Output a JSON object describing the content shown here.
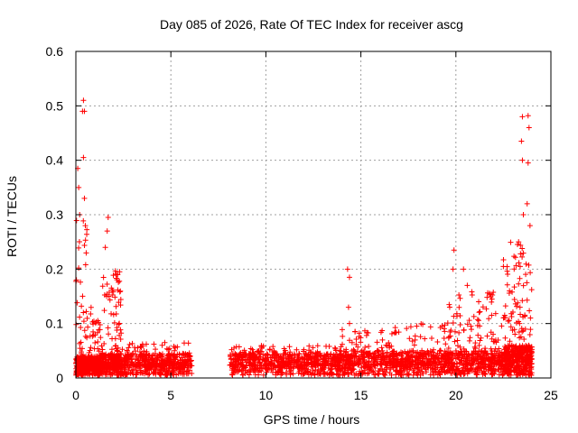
{
  "chart_data": {
    "type": "scatter",
    "title": "Day 085 of 2026, Rate Of TEC Index for receiver ascg",
    "xlabel": "GPS time / hours",
    "ylabel": "ROTI / TECUs",
    "xlim": [
      0,
      25
    ],
    "ylim": [
      0,
      0.6
    ],
    "x_ticks": [
      "0",
      "5",
      "10",
      "15",
      "20",
      "25"
    ],
    "y_ticks": [
      "0",
      "0.1",
      "0.2",
      "0.3",
      "0.4",
      "0.5",
      "0.6"
    ],
    "grid": true,
    "marker": "+",
    "color": "#ff0000",
    "data_gap_hours": [
      6.1,
      8.1
    ],
    "notable_points": [
      {
        "x": 0.4,
        "y": 0.51
      },
      {
        "x": 0.35,
        "y": 0.49
      },
      {
        "x": 0.45,
        "y": 0.49
      },
      {
        "x": 0.4,
        "y": 0.405
      },
      {
        "x": 0.1,
        "y": 0.385
      },
      {
        "x": 0.15,
        "y": 0.35
      },
      {
        "x": 0.45,
        "y": 0.33
      },
      {
        "x": 0.2,
        "y": 0.3
      },
      {
        "x": 0.5,
        "y": 0.28
      },
      {
        "x": 1.7,
        "y": 0.295
      },
      {
        "x": 1.65,
        "y": 0.27
      },
      {
        "x": 1.55,
        "y": 0.24
      },
      {
        "x": 2.2,
        "y": 0.19
      },
      {
        "x": 14.3,
        "y": 0.2
      },
      {
        "x": 14.4,
        "y": 0.185
      },
      {
        "x": 14.35,
        "y": 0.13
      },
      {
        "x": 14.4,
        "y": 0.1
      },
      {
        "x": 19.9,
        "y": 0.235
      },
      {
        "x": 19.85,
        "y": 0.2
      },
      {
        "x": 20.4,
        "y": 0.2
      },
      {
        "x": 20.6,
        "y": 0.17
      },
      {
        "x": 21.2,
        "y": 0.14
      },
      {
        "x": 22.5,
        "y": 0.205
      },
      {
        "x": 23.5,
        "y": 0.48
      },
      {
        "x": 23.8,
        "y": 0.482
      },
      {
        "x": 23.85,
        "y": 0.46
      },
      {
        "x": 23.45,
        "y": 0.435
      },
      {
        "x": 23.5,
        "y": 0.4
      },
      {
        "x": 23.8,
        "y": 0.395
      },
      {
        "x": 23.75,
        "y": 0.32
      },
      {
        "x": 23.55,
        "y": 0.3
      },
      {
        "x": 23.9,
        "y": 0.28
      },
      {
        "x": 23.3,
        "y": 0.25
      }
    ],
    "density_profile": [
      {
        "x_range": [
          0,
          0.6
        ],
        "base_max": 0.04,
        "spread_max": 0.3,
        "count": 220
      },
      {
        "x_range": [
          0.6,
          1.3
        ],
        "base_max": 0.04,
        "spread_max": 0.13,
        "count": 220
      },
      {
        "x_range": [
          1.3,
          2.4
        ],
        "base_max": 0.045,
        "spread_max": 0.2,
        "count": 300
      },
      {
        "x_range": [
          2.4,
          6.1
        ],
        "base_max": 0.045,
        "spread_max": 0.065,
        "count": 500
      },
      {
        "x_range": [
          8.1,
          14.0
        ],
        "base_max": 0.045,
        "spread_max": 0.06,
        "count": 700
      },
      {
        "x_range": [
          14.0,
          16.5
        ],
        "base_max": 0.05,
        "spread_max": 0.09,
        "count": 300
      },
      {
        "x_range": [
          16.5,
          19.5
        ],
        "base_max": 0.05,
        "spread_max": 0.1,
        "count": 400
      },
      {
        "x_range": [
          19.5,
          22.5
        ],
        "base_max": 0.05,
        "spread_max": 0.16,
        "count": 450
      },
      {
        "x_range": [
          22.5,
          24.0
        ],
        "base_max": 0.06,
        "spread_max": 0.25,
        "count": 450
      }
    ]
  }
}
